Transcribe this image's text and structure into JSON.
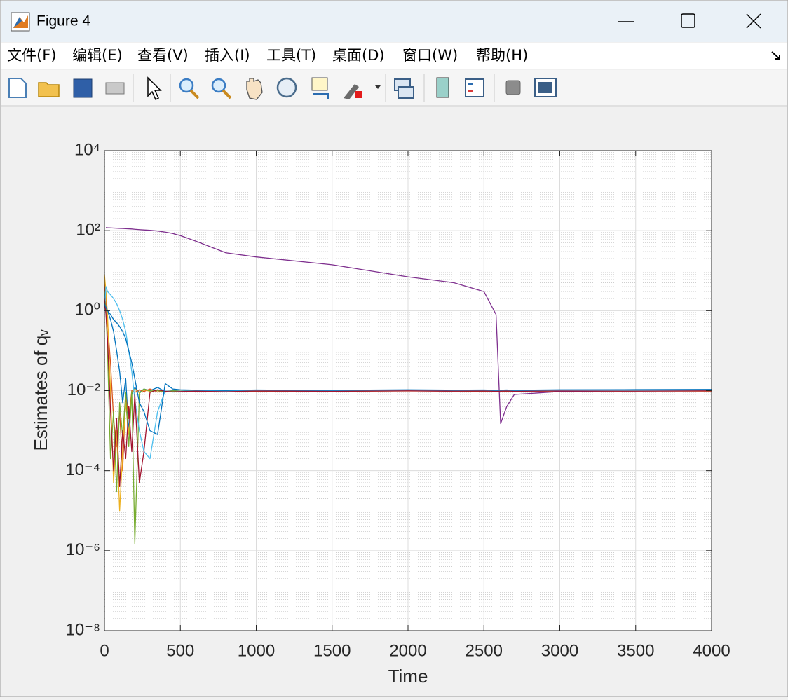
{
  "window": {
    "title": "Figure 4",
    "menu": [
      "文件(F)",
      "编辑(E)",
      "查看(V)",
      "插入(I)",
      "工具(T)",
      "桌面(D)",
      "窗口(W)",
      "帮助(H)"
    ]
  },
  "chart_data": {
    "type": "line",
    "xlabel": "Time",
    "ylabel": "Estimates of qᵥ",
    "yscale": "log",
    "grid": true,
    "minor_grid": true,
    "xlim": [
      0,
      4000
    ],
    "xticks": [
      0,
      500,
      1000,
      1500,
      2000,
      2500,
      3000,
      3500,
      4000
    ],
    "ylim": [
      1e-08,
      10000
    ],
    "yticks": [
      {
        "value": 1e-08,
        "label": "10⁻⁸"
      },
      {
        "value": 1e-06,
        "label": "10⁻⁶"
      },
      {
        "value": 0.0001,
        "label": "10⁻⁴"
      },
      {
        "value": 0.01,
        "label": "10⁻²"
      },
      {
        "value": 1,
        "label": "10⁰"
      },
      {
        "value": 100,
        "label": "10²"
      },
      {
        "value": 10000,
        "label": "10⁴"
      }
    ],
    "x": [
      0,
      10,
      20,
      40,
      60,
      80,
      100,
      120,
      140,
      160,
      180,
      200,
      230,
      260,
      300,
      350,
      400,
      450,
      500,
      600,
      800,
      1000,
      1500,
      2000,
      2300,
      2500,
      2580,
      2610,
      2650,
      2700,
      3000,
      3500,
      4000
    ],
    "series": [
      {
        "color": "#0072BD",
        "values": [
          2,
          1.5,
          1,
          0.6,
          0.3,
          0.1,
          0.03,
          0.005,
          0.02,
          0.001,
          0.008,
          0.012,
          0.009,
          0.011,
          0.01,
          0.012,
          0.0095,
          0.01,
          0.0098,
          0.0102,
          0.0097,
          0.0101,
          0.0099,
          0.0103,
          0.01,
          0.0102,
          0.0099,
          0.0101,
          0.01,
          0.0103,
          0.0102,
          0.0104,
          0.0105
        ]
      },
      {
        "color": "#D95319",
        "values": [
          5,
          2,
          0.5,
          0.05,
          0.002,
          0.0004,
          0.003,
          0.0001,
          0.008,
          0.002,
          0.01,
          0.009,
          0.0105,
          0.0095,
          0.011,
          0.0092,
          0.0098,
          0.0093,
          0.0096,
          0.0094,
          0.0097,
          0.0095,
          0.0096,
          0.0098,
          0.0097,
          0.0096,
          0.0098,
          0.0097,
          0.0096,
          0.0098,
          0.0097,
          0.0098,
          0.0097
        ]
      },
      {
        "color": "#EDB120",
        "values": [
          8,
          3,
          0.8,
          0.01,
          5e-05,
          0.001,
          1e-05,
          0.0003,
          0.005,
          0.0008,
          0.009,
          0.011,
          0.0088,
          0.0105,
          0.0096,
          0.0101,
          0.0092,
          0.0097,
          0.0095,
          0.0099,
          0.0096,
          0.01,
          0.0098,
          0.0101,
          0.0099,
          0.01,
          0.0098,
          0.0101,
          0.01,
          0.0099,
          0.0101,
          0.01,
          0.0102
        ]
      },
      {
        "color": "#7E2F8E",
        "values": [
          null,
          120,
          118,
          117,
          116,
          115,
          114,
          113,
          112,
          111,
          110,
          108,
          106,
          104,
          102,
          98,
          92,
          85,
          75,
          55,
          28,
          22,
          14,
          7,
          5,
          3,
          0.8,
          0.0015,
          0.004,
          0.008,
          0.0095,
          0.01,
          0.0105
        ]
      },
      {
        "color": "#77AC30",
        "values": [
          3,
          1,
          0.1,
          0.0002,
          0.003,
          3e-05,
          0.005,
          0.0007,
          0.009,
          0.0004,
          0.0095,
          1.5e-06,
          0.0085,
          0.011,
          0.0098,
          0.01,
          0.0094,
          0.0099,
          0.0097,
          0.01,
          0.0098,
          0.0102,
          0.01,
          0.0101,
          0.0099,
          0.0102,
          0.01,
          0.0099,
          0.0101,
          0.01,
          0.0102,
          0.0101,
          0.0103
        ]
      },
      {
        "color": "#4DBEEE",
        "values": [
          1,
          4,
          3,
          2.5,
          2,
          1.5,
          1,
          0.6,
          0.3,
          0.1,
          0.03,
          0.006,
          0.001,
          0.0003,
          0.0002,
          0.003,
          0.0098,
          0.0092,
          0.0096,
          0.0099,
          0.0097,
          0.01,
          0.0098,
          0.0101,
          0.0099,
          0.0102,
          0.01,
          0.0099,
          0.0101,
          0.01,
          0.0101,
          0.0102,
          0.0101
        ]
      },
      {
        "color": "#A2142F",
        "values": [
          2,
          0.8,
          0.2,
          0.003,
          0.0001,
          0.002,
          4e-05,
          0.001,
          0.0002,
          0.004,
          0.0003,
          0.008,
          5e-05,
          0.0003,
          0.009,
          0.0105,
          0.0096,
          0.0093,
          0.0095,
          0.0097,
          0.0094,
          0.0098,
          0.0096,
          0.0099,
          0.0097,
          0.0098,
          0.0096,
          0.0097,
          0.0098,
          0.0096,
          0.0098,
          0.0097,
          0.0099
        ]
      },
      {
        "color": "#0072BD",
        "values": [
          1.5,
          1.2,
          1,
          0.8,
          0.6,
          0.5,
          0.4,
          0.3,
          0.2,
          0.1,
          0.05,
          0.02,
          0.005,
          0.003,
          0.001,
          0.0008,
          0.015,
          0.011,
          0.0105,
          0.0103,
          0.0101,
          0.0104,
          0.0102,
          0.0105,
          0.0103,
          0.0104,
          0.0102,
          0.0103,
          0.0104,
          0.0102,
          0.0105,
          0.0106,
          0.0107
        ]
      }
    ]
  }
}
